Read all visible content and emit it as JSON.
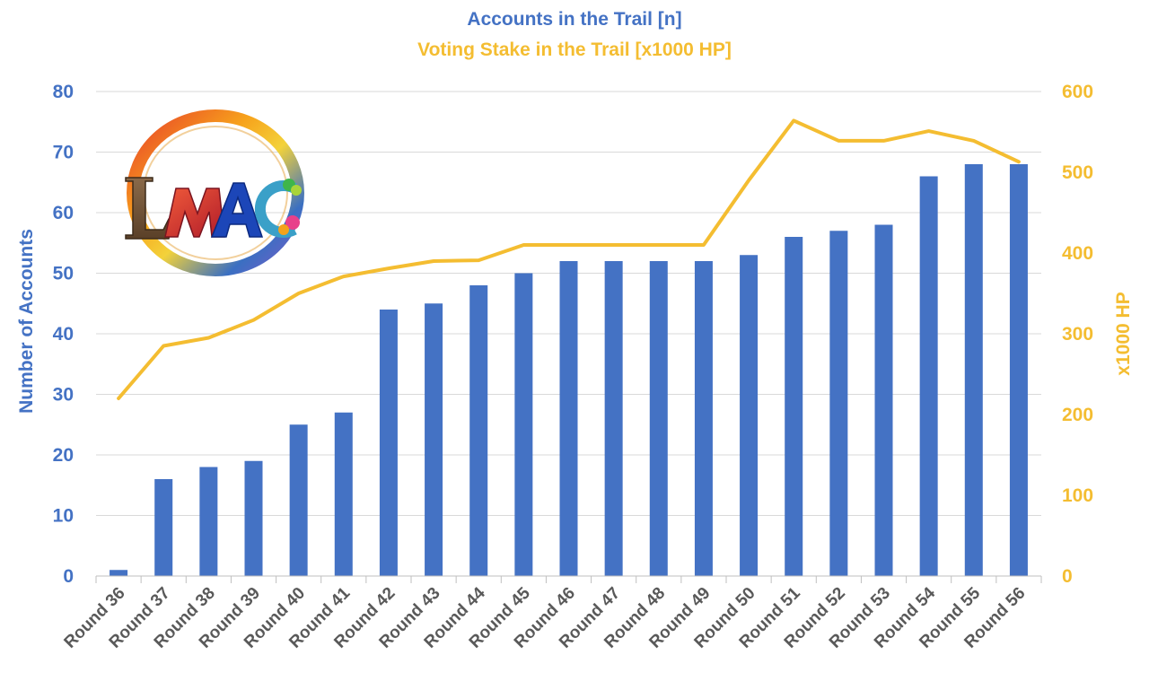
{
  "chart_data": {
    "type": "bar",
    "title": "Accounts in the Trail [n]",
    "subtitle": "Voting Stake in the Trail [x1000 HP]",
    "ylabel": "Number of Accounts",
    "y2label": "x1000 HP",
    "xlabel": "",
    "ylim": [
      0,
      80
    ],
    "y2lim": [
      0,
      600
    ],
    "yticks": [
      0,
      10,
      20,
      30,
      40,
      50,
      60,
      70,
      80
    ],
    "y2ticks": [
      0,
      100,
      200,
      300,
      400,
      500,
      600
    ],
    "grid": true,
    "categories": [
      "Round 36",
      "Round 37",
      "Round 38",
      "Round 39",
      "Round 40",
      "Round 41",
      "Round 42",
      "Round 43",
      "Round 44",
      "Round 45",
      "Round 46",
      "Round 47",
      "Round 48",
      "Round 49",
      "Round 50",
      "Round 51",
      "Round 52",
      "Round 53",
      "Round 54",
      "Round 55",
      "Round 56"
    ],
    "series": [
      {
        "type": "bar",
        "axis": "left",
        "color": "#4472c4",
        "values": [
          1,
          16,
          18,
          19,
          25,
          27,
          44,
          45,
          48,
          50,
          52,
          52,
          52,
          52,
          53,
          56,
          57,
          58,
          66,
          68,
          68
        ]
      },
      {
        "type": "line",
        "axis": "right",
        "color": "#f4bd31",
        "values": [
          220,
          285,
          295,
          317,
          350,
          371,
          381,
          390,
          391,
          410,
          410,
          410,
          410,
          410,
          490,
          564,
          539,
          539,
          551,
          539,
          513
        ]
      }
    ]
  },
  "logo": {
    "text": "LMAC",
    "icon": "lmac-logo-icon"
  }
}
